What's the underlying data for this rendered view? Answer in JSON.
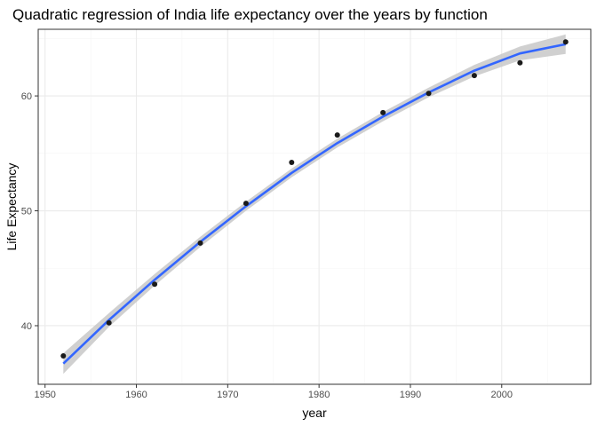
{
  "chart_data": {
    "type": "scatter",
    "title": "Quadratic regression of India life expectancy over the years by function",
    "xlabel": "year",
    "ylabel": "Life Expectancy",
    "xlim": [
      1949.25,
      2009.75
    ],
    "ylim": [
      34.9,
      65.8
    ],
    "x_ticks": [
      1950,
      1960,
      1970,
      1980,
      1990,
      2000
    ],
    "x_minor_ticks": [
      1955,
      1965,
      1975,
      1985,
      1995,
      2005
    ],
    "y_ticks": [
      40,
      50,
      60
    ],
    "y_minor_ticks": [
      35,
      45,
      55,
      65
    ],
    "x_tick_labels": [
      "1950",
      "1960",
      "1970",
      "1980",
      "1990",
      "2000"
    ],
    "y_tick_labels": [
      "40",
      "50",
      "60"
    ],
    "grid": true,
    "legend": "none",
    "theme": "bw",
    "points": {
      "x": [
        1952,
        1957,
        1962,
        1967,
        1972,
        1977,
        1982,
        1987,
        1992,
        1997,
        2002,
        2007
      ],
      "y": [
        37.37,
        40.25,
        43.61,
        47.19,
        50.65,
        54.21,
        56.6,
        58.55,
        60.22,
        61.77,
        62.88,
        64.7
      ]
    },
    "fit": {
      "method": "quadratic",
      "x": [
        1952,
        1957,
        1962,
        1967,
        1972,
        1977,
        1982,
        1987,
        1992,
        1997,
        2002,
        2007
      ],
      "y": [
        36.7,
        40.5,
        44.0,
        47.3,
        50.4,
        53.3,
        55.9,
        58.2,
        60.3,
        62.2,
        63.7,
        64.5
      ],
      "ci_halfwidth": [
        0.9,
        0.6,
        0.5,
        0.45,
        0.4,
        0.38,
        0.38,
        0.4,
        0.42,
        0.5,
        0.6,
        0.85
      ]
    },
    "colors": {
      "line": "#3366ff",
      "band": "#c8c8c8",
      "points": "#1a1a1a",
      "grid_major": "#ebebeb",
      "grid_minor": "#f5f5f5",
      "panel_border": "#333333"
    }
  }
}
